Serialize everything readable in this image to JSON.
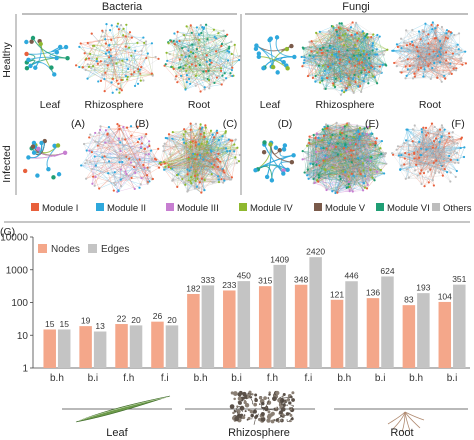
{
  "headers": {
    "bacteria": "Bacteria",
    "fungi": "Fungi"
  },
  "row_labels": {
    "healthy": "Healthy",
    "infected": "Infected"
  },
  "panels": [
    {
      "organ": "Leaf",
      "letter": "(A)"
    },
    {
      "organ": "Rhizosphere",
      "letter": "(B)"
    },
    {
      "organ": "Root",
      "letter": "(C)"
    },
    {
      "organ": "Leaf",
      "letter": "(D)"
    },
    {
      "organ": "Rhizosphere",
      "letter": "(E)"
    },
    {
      "organ": "Root",
      "letter": "(F)"
    }
  ],
  "modules_legend": [
    {
      "label": "Module I",
      "color": "#e8603c"
    },
    {
      "label": "Module II",
      "color": "#2ea8dc"
    },
    {
      "label": "Module III",
      "color": "#c77ed1"
    },
    {
      "label": "Module IV",
      "color": "#8fb82f"
    },
    {
      "label": "Module V",
      "color": "#7a5a4a"
    },
    {
      "label": "Module VI",
      "color": "#1f9e74"
    },
    {
      "label": "Others",
      "color": "#bdbdbd"
    }
  ],
  "panel_g_label": "(G)",
  "organ_groups": [
    "Leaf",
    "Rhizosphere",
    "Root"
  ],
  "chart_data": {
    "type": "bar",
    "log_scale": true,
    "ylim": [
      1,
      10000
    ],
    "yticks": [
      "10000",
      "1000",
      "100",
      "10",
      "1"
    ],
    "categories": [
      "b.h",
      "b.i",
      "f.h",
      "f.i",
      "b.h",
      "b.i",
      "f.h",
      "f.i",
      "b.h",
      "b.i",
      "b.h",
      "b.i"
    ],
    "series": [
      {
        "name": "Nodes",
        "color": "#f4a78a",
        "values": [
          15,
          19,
          22,
          26,
          182,
          233,
          315,
          348,
          121,
          136,
          83,
          104
        ]
      },
      {
        "name": "Edges",
        "color": "#c4c4c4",
        "values": [
          15,
          13,
          20,
          20,
          333,
          450,
          1409,
          2420,
          446,
          624,
          193,
          351
        ]
      }
    ],
    "legend_position": "top-left",
    "grid": false
  }
}
